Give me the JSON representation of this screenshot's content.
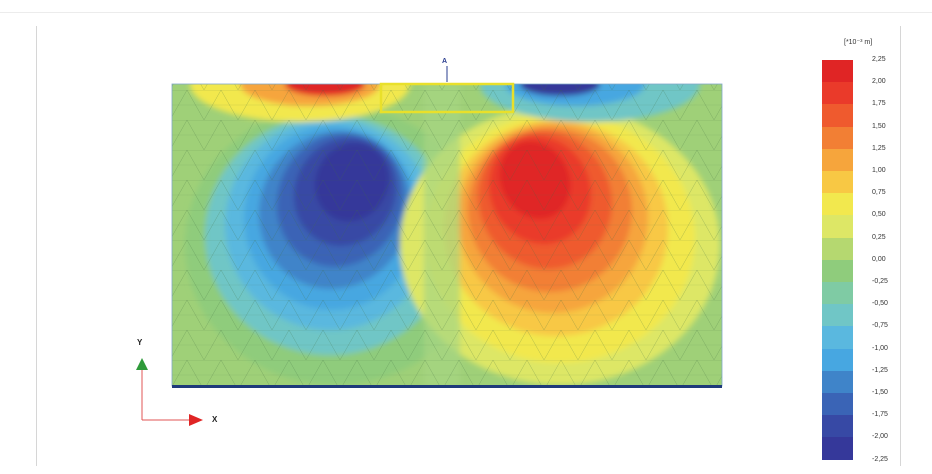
{
  "legend": {
    "unit": "[*10⁻³ m]",
    "items": [
      {
        "label": "2,25",
        "color": "#e02525"
      },
      {
        "label": "2,00",
        "color": "#ea3a2a"
      },
      {
        "label": "1,75",
        "color": "#ef5a2e"
      },
      {
        "label": "1,50",
        "color": "#f27f34"
      },
      {
        "label": "1,25",
        "color": "#f6a53c"
      },
      {
        "label": "1,00",
        "color": "#f8c844"
      },
      {
        "label": "0,75",
        "color": "#f2e84e"
      },
      {
        "label": "0,50",
        "color": "#dde766"
      },
      {
        "label": "0,25",
        "color": "#b5d870"
      },
      {
        "label": "0,00",
        "color": "#8fcc7c"
      },
      {
        "label": "-0,25",
        "color": "#7fcba4"
      },
      {
        "label": "-0,50",
        "color": "#70c6c6"
      },
      {
        "label": "-0,75",
        "color": "#5ab8df"
      },
      {
        "label": "-1,00",
        "color": "#47a7e1"
      },
      {
        "label": "-1,25",
        "color": "#3f84c9"
      },
      {
        "label": "-1,50",
        "color": "#3a64b6"
      },
      {
        "label": "-1,75",
        "color": "#3749a5"
      },
      {
        "label": "-2,00",
        "color": "#35389a"
      },
      {
        "label": "-2,25",
        "color": ""
      }
    ]
  },
  "axes": {
    "x_label": "X",
    "y_label": "Y"
  },
  "point_label": "A"
}
